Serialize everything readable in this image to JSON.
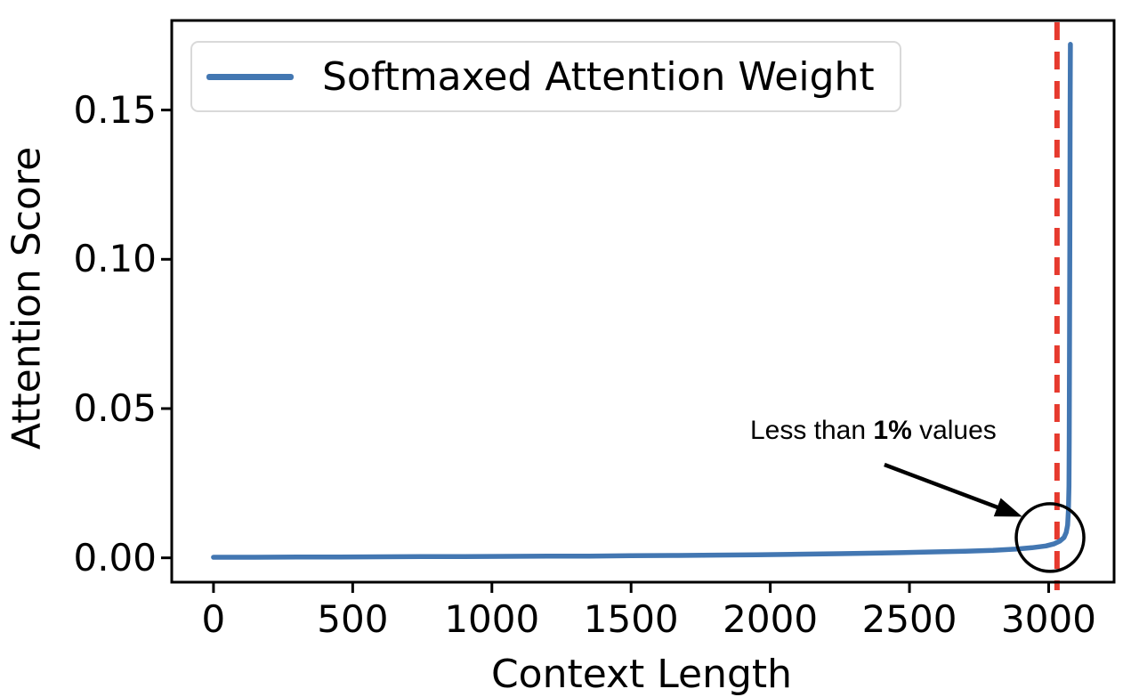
{
  "chart_data": {
    "type": "line",
    "title": "",
    "xlabel": "Context Length",
    "ylabel": "Attention Score",
    "xlim": [
      -150,
      3235
    ],
    "ylim": [
      -0.00815,
      0.18
    ],
    "grid": false,
    "xticks": [
      0,
      500,
      1000,
      1500,
      2000,
      2500,
      3000
    ],
    "xtick_labels": [
      "0",
      "500",
      "1000",
      "1500",
      "2000",
      "2500",
      "3000"
    ],
    "yticks": [
      0.0,
      0.05,
      0.1,
      0.15
    ],
    "ytick_labels": [
      "0.00",
      "0.05",
      "0.10",
      "0.15"
    ],
    "legend": {
      "position": "upper left",
      "entries": [
        {
          "label": "Softmaxed Attention Weight",
          "color": "#4377b2"
        }
      ]
    },
    "series": [
      {
        "name": "Softmaxed Attention Weight",
        "color": "#4377b2",
        "peak_value": 0.172,
        "peak_x": 3078,
        "points": [
          [
            0,
            0.0002
          ],
          [
            150,
            0.0002
          ],
          [
            300,
            0.00025
          ],
          [
            450,
            0.0003
          ],
          [
            600,
            0.00035
          ],
          [
            750,
            0.0004
          ],
          [
            900,
            0.00045
          ],
          [
            1050,
            0.0005
          ],
          [
            1200,
            0.00055
          ],
          [
            1350,
            0.0006
          ],
          [
            1500,
            0.0007
          ],
          [
            1650,
            0.0008
          ],
          [
            1800,
            0.0009
          ],
          [
            1950,
            0.001
          ],
          [
            2100,
            0.0012
          ],
          [
            2250,
            0.0014
          ],
          [
            2400,
            0.0016
          ],
          [
            2550,
            0.0019
          ],
          [
            2700,
            0.0022
          ],
          [
            2800,
            0.0025
          ],
          [
            2880,
            0.0029
          ],
          [
            2940,
            0.0034
          ],
          [
            2990,
            0.004
          ],
          [
            3020,
            0.0047
          ],
          [
            3040,
            0.0056
          ],
          [
            3055,
            0.0068
          ],
          [
            3063,
            0.0085
          ],
          [
            3068,
            0.011
          ],
          [
            3071,
            0.016
          ],
          [
            3073,
            0.024
          ],
          [
            3074,
            0.04
          ],
          [
            3075,
            0.07
          ],
          [
            3076,
            0.11
          ],
          [
            3077,
            0.15
          ],
          [
            3078,
            0.172
          ]
        ]
      }
    ],
    "vline": {
      "x": 3030,
      "color": "#e63a2e",
      "style": "dashed"
    },
    "annotation": {
      "text_prefix": "Less than ",
      "text_bold": "1%",
      "text_suffix": " values",
      "text_pos": [
        2370,
        0.0425
      ],
      "arrow_from": [
        2410,
        0.0312
      ],
      "arrow_to": [
        2905,
        0.0138
      ],
      "circle_center": [
        3005,
        0.0068
      ],
      "circle_radius_px": 38,
      "color": "#000000"
    },
    "axis_color": "#000000",
    "background": "#ffffff"
  }
}
